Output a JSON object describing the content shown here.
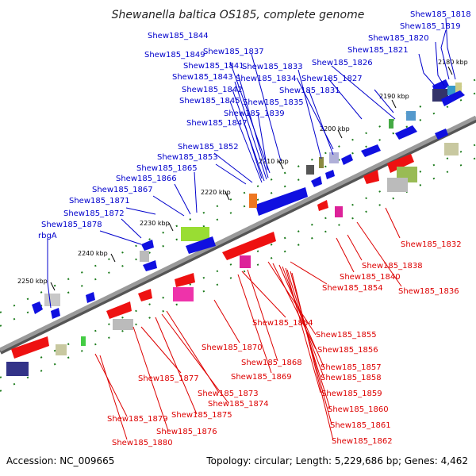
{
  "title": "Shewanella baltica OS185, complete genome",
  "footer": {
    "accession": "Accession: NC_009665",
    "summary": "Topology: circular; Length: 5,229,686 bp; Genes: 4,462"
  },
  "colors": {
    "top_genes": "#1010e0",
    "bottom_genes": "#ee1111",
    "top_labels": "#0000cc",
    "bottom_labels": "#dd0000",
    "backbone": "#888888",
    "tick": "#1a7a1a"
  },
  "scale_labels": [
    "2180 kbp",
    "2190 kbp",
    "2200 kbp",
    "2210 kbp",
    "2220 kbp",
    "2230 kbp",
    "2240 kbp",
    "2250 kbp"
  ],
  "top_labels": [
    "Shew185_1818",
    "Shew185_1819",
    "Shew185_1820",
    "Shew185_1821",
    "Shew185_1844",
    "Shew185_1837",
    "Shew185_1849",
    "Shew185_1826",
    "Shew185_1841",
    "Shew185_1833",
    "Shew185_1843",
    "Shew185_1834",
    "Shew185_1827",
    "Shew185_1842",
    "Shew185_1831",
    "Shew185_1845",
    "Shew185_1835",
    "Shew185_1839",
    "Shew185_1847",
    "Shew185_1852",
    "Shew185_1853",
    "Shew185_1865",
    "Shew185_1866",
    "Shew185_1867",
    "Shew185_1871",
    "Shew185_1872",
    "Shew185_1878",
    "rbgA"
  ],
  "bottom_labels": [
    "Shew185_1832",
    "Shew185_1838",
    "Shew185_1840",
    "Shew185_1836",
    "Shew185_1854",
    "Shew185_1864",
    "Shew185_1855",
    "Shew185_1856",
    "Shew185_1870",
    "Shew185_1868",
    "Shew185_1857",
    "Shew185_1858",
    "Shew185_1869",
    "Shew185_1877",
    "Shew185_1859",
    "Shew185_1873",
    "Shew185_1874",
    "Shew185_1860",
    "Shew185_1875",
    "Shew185_1879",
    "Shew185_1861",
    "Shew185_1876",
    "Shew185_1862",
    "Shew185_1880"
  ]
}
